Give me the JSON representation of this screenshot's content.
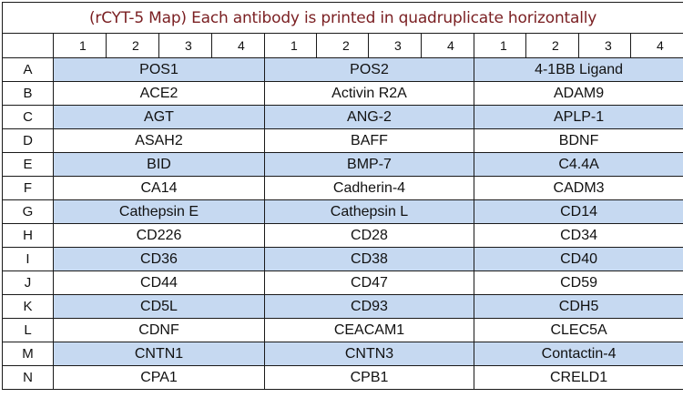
{
  "title": "(rCYT-5 Map) Each antibody is printed in quadruplicate horizontally",
  "column_numbers": [
    [
      "1",
      "2",
      "3",
      "4"
    ],
    [
      "1",
      "2",
      "3",
      "4"
    ],
    [
      "1",
      "2",
      "3",
      "4"
    ]
  ],
  "rows": [
    {
      "label": "A",
      "antibodies": [
        "POS1",
        "POS2",
        "4-1BB Ligand"
      ]
    },
    {
      "label": "B",
      "antibodies": [
        "ACE2",
        "Activin R2A",
        "ADAM9"
      ]
    },
    {
      "label": "C",
      "antibodies": [
        "AGT",
        "ANG-2",
        "APLP-1"
      ]
    },
    {
      "label": "D",
      "antibodies": [
        "ASAH2",
        "BAFF",
        "BDNF"
      ]
    },
    {
      "label": "E",
      "antibodies": [
        "BID",
        "BMP-7",
        "C4.4A"
      ]
    },
    {
      "label": "F",
      "antibodies": [
        "CA14",
        "Cadherin-4",
        "CADM3"
      ]
    },
    {
      "label": "G",
      "antibodies": [
        "Cathepsin E",
        "Cathepsin L",
        "CD14"
      ]
    },
    {
      "label": "H",
      "antibodies": [
        "CD226",
        "CD28",
        "CD34"
      ]
    },
    {
      "label": "I",
      "antibodies": [
        "CD36",
        "CD38",
        "CD40"
      ]
    },
    {
      "label": "J",
      "antibodies": [
        "CD44",
        "CD47",
        "CD59"
      ]
    },
    {
      "label": "K",
      "antibodies": [
        "CD5L",
        "CD93",
        "CDH5"
      ]
    },
    {
      "label": "L",
      "antibodies": [
        "CDNF",
        "CEACAM1",
        "CLEC5A"
      ]
    },
    {
      "label": "M",
      "antibodies": [
        "CNTN1",
        "CNTN3",
        "Contactin-4"
      ]
    },
    {
      "label": "N",
      "antibodies": [
        "CPA1",
        "CPB1",
        "CRELD1"
      ]
    }
  ],
  "colors": {
    "title_text": "#7a1f22",
    "shaded_cell": "#c6d9f1",
    "grid_line": "#1a1a1a"
  }
}
